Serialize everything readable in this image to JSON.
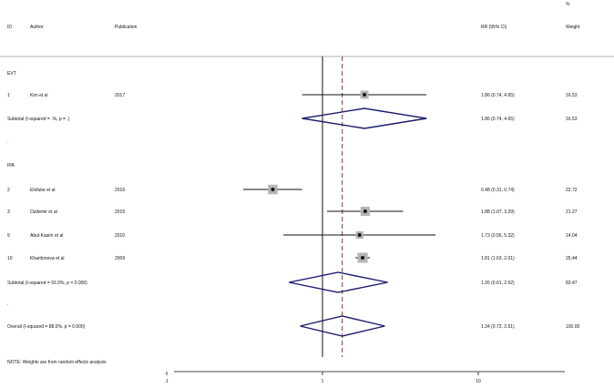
{
  "header": {
    "weight_unit": "%",
    "col_id": "ID",
    "col_author": "Author",
    "col_publication": "Publication",
    "col_rr": "RR (95% CI)",
    "col_weight": "Weight"
  },
  "note": "NOTE: Weights are from random effects analysis",
  "chart_data": {
    "type": "forest",
    "scale": "log",
    "xlim": [
      0.1,
      40
    ],
    "ticks": [
      {
        "value": 0.1,
        "label": ".1"
      },
      {
        "value": 1,
        "label": "1"
      },
      {
        "value": 10,
        "label": "10"
      }
    ],
    "null_line": 1,
    "overall_line": 1.34,
    "rows": [
      {
        "kind": "group",
        "label": "EVT"
      },
      {
        "kind": "study",
        "id": "1",
        "author": "Kim et al",
        "year": "2017",
        "rr": 1.86,
        "lo": 0.74,
        "hi": 4.65,
        "rr_text": "1.86 (0.74, 4.65)",
        "weight": "16.53",
        "w": 16.53
      },
      {
        "kind": "subtotal",
        "label": "Subtotal  (I-squared = .%, p = .)",
        "rr": 1.86,
        "lo": 0.74,
        "hi": 4.65,
        "rr_text": "1.86 (0.74, 4.65)",
        "weight": "16.53"
      },
      {
        "kind": "dot",
        "label": "."
      },
      {
        "kind": "group",
        "label": "IPA"
      },
      {
        "kind": "study",
        "id": "2",
        "author": "Elofuke et al",
        "year": "2016",
        "rr": 0.48,
        "lo": 0.31,
        "hi": 0.74,
        "rr_text": "0.48 (0.31, 0.74)",
        "weight": "22.72",
        "w": 22.72
      },
      {
        "kind": "study",
        "id": "3",
        "author": "Ozdemir et al",
        "year": "2015",
        "rr": 1.88,
        "lo": 1.07,
        "hi": 3.29,
        "rr_text": "1.88 (1.07, 3.29)",
        "weight": "21.27",
        "w": 21.27
      },
      {
        "kind": "study",
        "id": "9",
        "author": "Abul-Kasim et al",
        "year": "2010",
        "rr": 1.73,
        "lo": 0.56,
        "hi": 5.32,
        "rr_text": "1.73 (0.56, 5.32)",
        "weight": "14.04",
        "w": 14.04
      },
      {
        "kind": "study",
        "id": "10",
        "author": "Kharitonova et al",
        "year": "2009",
        "rr": 1.81,
        "lo": 1.63,
        "hi": 2.01,
        "rr_text": "1.81 (1.63, 2.01)",
        "weight": "25.44",
        "w": 25.44
      },
      {
        "kind": "subtotal",
        "label": "Subtotal  (I-squared = 91.0%, p = 0.000)",
        "rr": 1.26,
        "lo": 0.61,
        "hi": 2.62,
        "rr_text": "1.26 (0.61, 2.62)",
        "weight": "83.47"
      },
      {
        "kind": "dot",
        "label": "."
      },
      {
        "kind": "overall",
        "label": "Overall  (I-squared = 88.0%, p = 0.000)",
        "rr": 1.34,
        "lo": 0.72,
        "hi": 2.51,
        "rr_text": "1.34 (0.72, 2.51)",
        "weight": "100.00"
      }
    ]
  }
}
